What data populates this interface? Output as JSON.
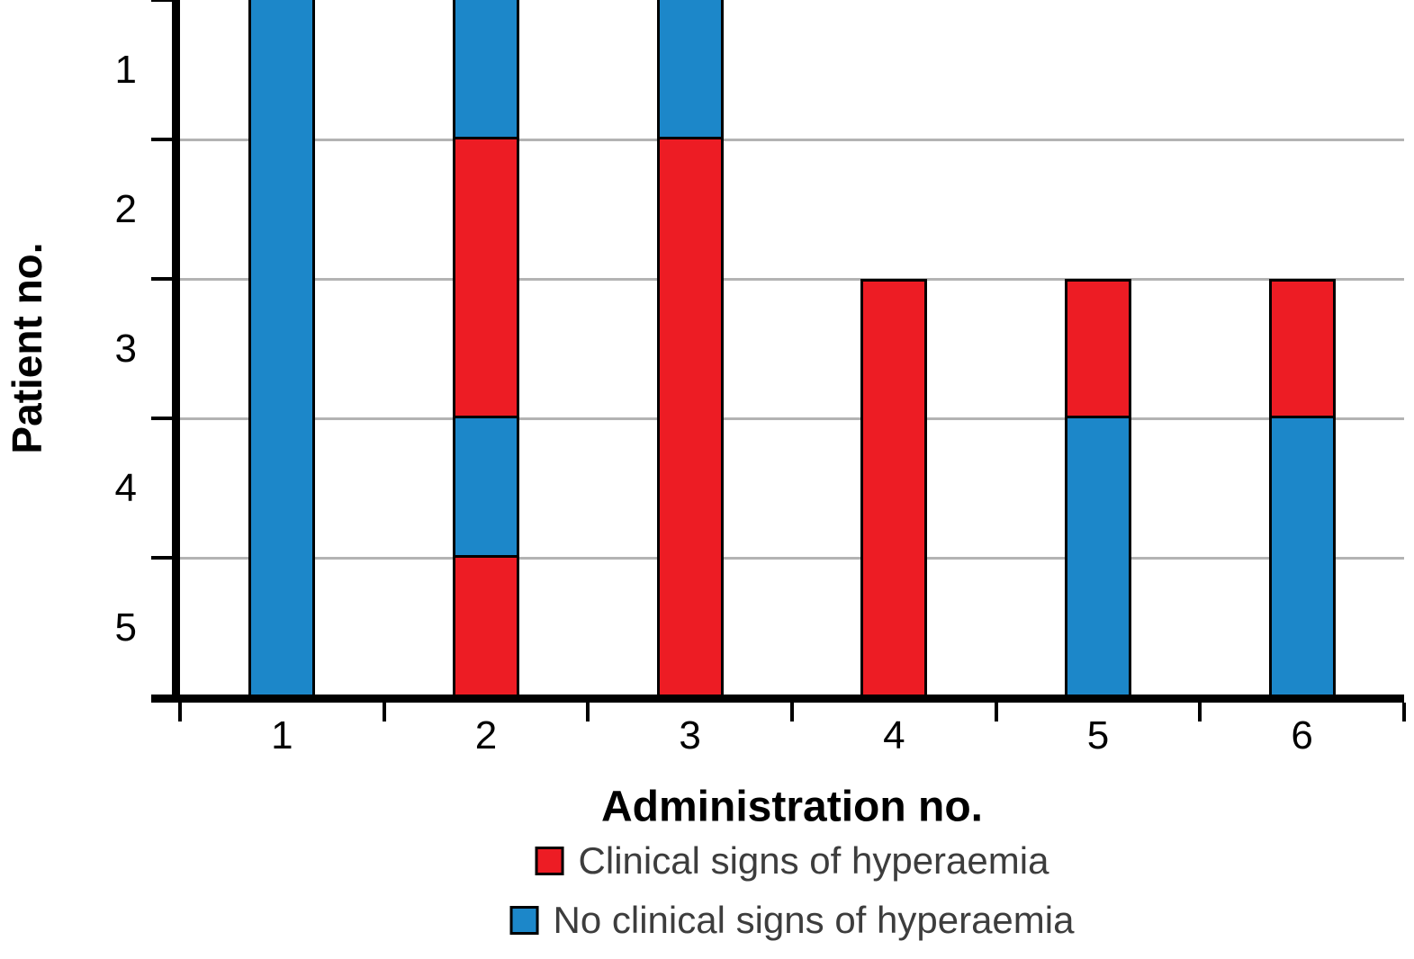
{
  "chart_data": {
    "type": "bar",
    "variant": "stacked-status-columns",
    "title": "",
    "xlabel": "Administration no.",
    "ylabel": "Patient no.",
    "x_categories": [
      "1",
      "2",
      "3",
      "4",
      "5",
      "6"
    ],
    "y_categories": [
      "1",
      "2",
      "3",
      "4",
      "5"
    ],
    "grid": true,
    "legend_position": "bottom",
    "status_colors": {
      "signs": "#ed1c24",
      "no_signs": "#1c87c9"
    },
    "legend": [
      {
        "key": "signs",
        "label": "Clinical signs of hyperaemia",
        "color": "#ed1c24"
      },
      {
        "key": "no_signs",
        "label": "No clinical signs of hyperaemia",
        "color": "#1c87c9"
      }
    ],
    "administrations": [
      {
        "administration": "1",
        "patient_status": [
          "no_signs",
          "no_signs",
          "no_signs",
          "no_signs",
          "no_signs"
        ]
      },
      {
        "administration": "2",
        "patient_status": [
          "no_signs",
          "signs",
          "signs",
          "no_signs",
          "signs"
        ]
      },
      {
        "administration": "3",
        "patient_status": [
          "no_signs",
          "signs",
          "signs",
          "signs",
          "signs"
        ]
      },
      {
        "administration": "4",
        "patient_status": [
          null,
          null,
          "signs",
          "signs",
          "signs"
        ]
      },
      {
        "administration": "5",
        "patient_status": [
          null,
          null,
          "signs",
          "no_signs",
          "no_signs"
        ]
      },
      {
        "administration": "6",
        "patient_status": [
          null,
          null,
          "signs",
          "no_signs",
          "no_signs"
        ]
      }
    ]
  }
}
